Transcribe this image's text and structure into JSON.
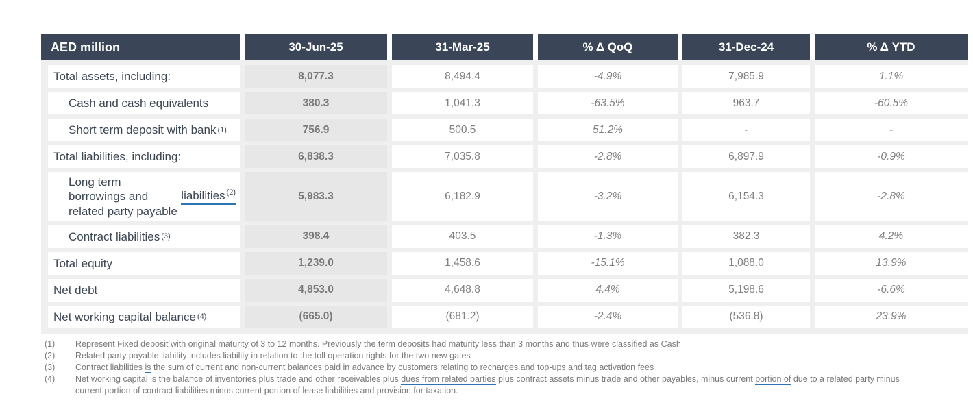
{
  "table": {
    "unit_label": "AED million",
    "columns": [
      "30-Jun-25",
      "31-Mar-25",
      "% Δ QoQ",
      "31-Dec-24",
      "% Δ YTD"
    ],
    "rows": [
      {
        "label": "Total assets, including:",
        "tail": "",
        "sup": "",
        "indent": false,
        "values": [
          "8,077.3",
          "8,494.4",
          "-4.9%",
          "7,985.9",
          "1.1%"
        ]
      },
      {
        "label": "Cash and cash equivalents",
        "tail": "",
        "sup": "",
        "indent": true,
        "values": [
          "380.3",
          "1,041.3",
          "-63.5%",
          "963.7",
          "-60.5%"
        ]
      },
      {
        "label": "Short term deposit with bank ",
        "tail": "",
        "sup": "(1)",
        "indent": true,
        "values": [
          "756.9",
          "500.5",
          "51.2%",
          "-",
          "-"
        ]
      },
      {
        "label": "Total liabilities, including:",
        "tail": "",
        "sup": "",
        "indent": false,
        "values": [
          "6,838.3",
          "7,035.8",
          "-2.8%",
          "6,897.9",
          "-0.9%"
        ]
      },
      {
        "label": "Long term borrowings and related party payable ",
        "tail": "liabilities",
        "sup": "(2)",
        "indent": true,
        "values": [
          "5,983.3",
          "6,182.9",
          "-3.2%",
          "6,154.3",
          "-2.8%"
        ]
      },
      {
        "label": "Contract liabilities ",
        "tail": "",
        "sup": "(3)",
        "indent": true,
        "values": [
          "398.4",
          "403.5",
          "-1.3%",
          "382.3",
          "4.2%"
        ]
      },
      {
        "label": "Total equity",
        "tail": "",
        "sup": "",
        "indent": false,
        "values": [
          "1,239.0",
          "1,458.6",
          "-15.1%",
          "1,088.0",
          "13.9%"
        ]
      },
      {
        "label": "Net debt",
        "tail": "",
        "sup": "",
        "indent": false,
        "values": [
          "4,853.0",
          "4,648.8",
          "4.4%",
          "5,198.6",
          "-6.6%"
        ]
      },
      {
        "label": "Net working capital balance ",
        "tail": "",
        "sup": "(4)",
        "indent": false,
        "values": [
          "(665.0)",
          "(681.2)",
          "-2.4%",
          "(536.8)",
          "23.9%"
        ]
      }
    ]
  },
  "footnotes": [
    {
      "num": "(1)",
      "segments": [
        {
          "t": "Represent Fixed deposit with original maturity of 3 to 12 months. Previously the term deposits had maturity less than 3 months and thus were classified as Cash"
        }
      ]
    },
    {
      "num": "(2)",
      "segments": [
        {
          "t": "Related party payable liability includes liability in relation to the toll operation rights for the two new gates"
        }
      ]
    },
    {
      "num": "(3)",
      "segments": [
        {
          "t": "Contract liabilities "
        },
        {
          "t": "is",
          "u": true
        },
        {
          "t": " the sum of current and non-current balances paid in advance by customers relating to recharges and top-ups and tag activation fees"
        }
      ]
    },
    {
      "num": "(4)",
      "segments": [
        {
          "t": "Net working capital is the balance of inventories plus trade and other receivables plus "
        },
        {
          "t": "dues from related parties",
          "u": true
        },
        {
          "t": " plus contract assets minus trade and other payables, minus current "
        },
        {
          "t": "portion of",
          "u": true
        },
        {
          "t": " due to a related party minus current portion of contract liabilities minus current portion of lease liabilities and provision for taxation."
        }
      ]
    }
  ],
  "colors": {
    "header_bg": "#3a4557",
    "header_text": "#ffffff",
    "table_backdrop": "#efefef",
    "highlight_column_bg": "#e7e7e7",
    "label_text": "#3d4753",
    "value_text": "#7f7f7f",
    "spellcheck_underline": "#2e74b5"
  }
}
